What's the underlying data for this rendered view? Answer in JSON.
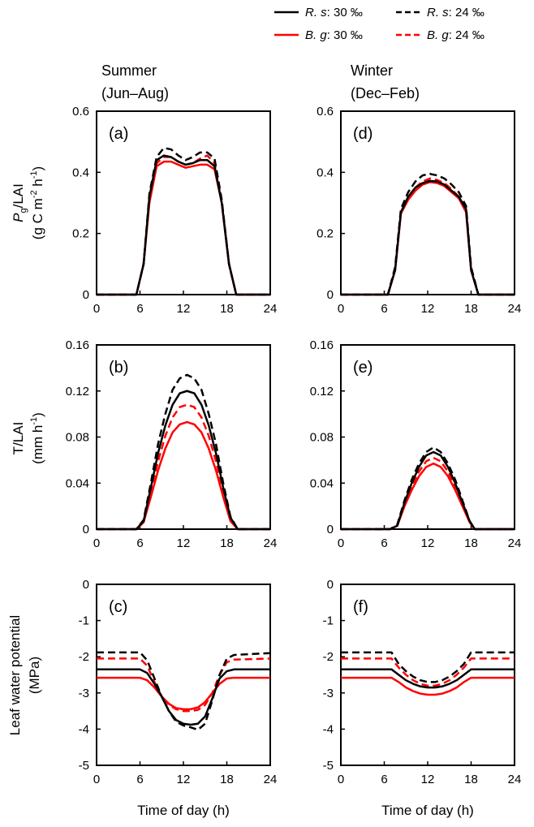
{
  "legend": [
    {
      "species": "R. s",
      "rest": ": 30 ‰",
      "color": "#000000",
      "dash": false
    },
    {
      "species": "R. s",
      "rest": ": 24 ‰",
      "color": "#000000",
      "dash": true
    },
    {
      "species": "B. g",
      "rest": ": 30 ‰",
      "color": "#ff0000",
      "dash": false
    },
    {
      "species": "B. g",
      "rest": ": 24 ‰",
      "color": "#ff0000",
      "dash": true
    }
  ],
  "columns": [
    {
      "title": "Summer",
      "subtitle": "(Jun–Aug)"
    },
    {
      "title": "Winter",
      "subtitle": "(Dec–Feb)"
    }
  ],
  "xlabel": "Time of day (h)",
  "ylabels": [
    {
      "p": "P",
      "sub": "g",
      "main": "/LAI",
      "u1": "(g C m",
      "s1": "-2",
      "u2": " h",
      "s2": "-1",
      "u3": ")"
    },
    {
      "main": "T/LAI",
      "u1": "(mm h",
      "s1": "-1",
      "u3": ")"
    },
    {
      "main": "Leaf water potential",
      "u1": "(MPa)"
    }
  ],
  "chart_data": [
    {
      "type": "line",
      "panel": "(a)",
      "ylim": [
        0,
        0.6
      ],
      "yticks": [
        "0",
        "0.2",
        "0.4",
        "0.6"
      ],
      "xlim": [
        0,
        24
      ],
      "xticks": [
        "0",
        "6",
        "12",
        "18",
        "24"
      ],
      "x": [
        0,
        5.5,
        6.5,
        7.3,
        8.3,
        9.3,
        10.3,
        11.3,
        12.3,
        13.3,
        14.3,
        15.3,
        16.3,
        17.3,
        18.3,
        19.3,
        24
      ],
      "series": [
        {
          "name": "R. s: 30 ‰",
          "values": [
            0,
            0,
            0.1,
            0.32,
            0.44,
            0.455,
            0.45,
            0.435,
            0.425,
            0.43,
            0.44,
            0.44,
            0.42,
            0.3,
            0.1,
            0,
            0
          ]
        },
        {
          "name": "R. s: 24 ‰",
          "values": [
            0,
            0,
            0.1,
            0.33,
            0.45,
            0.48,
            0.475,
            0.455,
            0.44,
            0.45,
            0.465,
            0.465,
            0.445,
            0.31,
            0.1,
            0,
            0
          ]
        },
        {
          "name": "B. g: 30 ‰",
          "values": [
            0,
            0,
            0.1,
            0.3,
            0.42,
            0.435,
            0.435,
            0.425,
            0.415,
            0.42,
            0.425,
            0.425,
            0.41,
            0.3,
            0.1,
            0,
            0
          ]
        },
        {
          "name": "B. g: 24 ‰",
          "values": [
            0,
            0,
            0.1,
            0.31,
            0.43,
            0.45,
            0.45,
            0.435,
            0.425,
            0.43,
            0.445,
            0.455,
            0.43,
            0.3,
            0.1,
            0,
            0
          ]
        }
      ]
    },
    {
      "type": "line",
      "panel": "(b)",
      "ylim": [
        0,
        0.16
      ],
      "yticks": [
        "0",
        "0.04",
        "0.08",
        "0.12",
        "0.16"
      ],
      "xlim": [
        0,
        24
      ],
      "xticks": [
        "0",
        "6",
        "12",
        "18",
        "24"
      ],
      "x": [
        0,
        5.5,
        6.5,
        7.5,
        8.5,
        9.5,
        10.5,
        11.5,
        12.5,
        13.5,
        14.5,
        15.5,
        16.5,
        17.5,
        18.5,
        19.5,
        24
      ],
      "series": [
        {
          "name": "R. s: 30 ‰",
          "values": [
            0,
            0,
            0.007,
            0.036,
            0.066,
            0.09,
            0.108,
            0.118,
            0.12,
            0.118,
            0.108,
            0.09,
            0.066,
            0.036,
            0.01,
            0,
            0
          ]
        },
        {
          "name": "R. s: 24 ‰",
          "values": [
            0,
            0,
            0.008,
            0.04,
            0.074,
            0.1,
            0.121,
            0.131,
            0.134,
            0.131,
            0.121,
            0.1,
            0.074,
            0.04,
            0.011,
            0,
            0
          ]
        },
        {
          "name": "B. g: 30 ‰",
          "values": [
            0,
            0,
            0.006,
            0.028,
            0.051,
            0.07,
            0.084,
            0.091,
            0.093,
            0.091,
            0.084,
            0.07,
            0.051,
            0.028,
            0.007,
            0,
            0
          ]
        },
        {
          "name": "B. g: 24 ‰",
          "values": [
            0,
            0,
            0.006,
            0.032,
            0.059,
            0.081,
            0.097,
            0.106,
            0.108,
            0.106,
            0.097,
            0.081,
            0.059,
            0.032,
            0.009,
            0,
            0
          ]
        }
      ]
    },
    {
      "type": "line",
      "panel": "(c)",
      "ylim": [
        -5,
        0
      ],
      "yticks": [
        "-5",
        "-4",
        "-3",
        "-2",
        "-1",
        "0"
      ],
      "xlim": [
        0,
        24
      ],
      "xticks": [
        "0",
        "6",
        "12",
        "18",
        "24"
      ],
      "x": [
        0,
        6,
        7,
        8,
        9,
        10,
        11,
        12,
        13,
        14,
        15,
        16,
        17,
        18,
        19,
        24
      ],
      "series": [
        {
          "name": "R. s: 30 ‰",
          "values": [
            -2.35,
            -2.35,
            -2.45,
            -2.75,
            -3.1,
            -3.5,
            -3.75,
            -3.85,
            -3.88,
            -3.85,
            -3.65,
            -3.15,
            -2.6,
            -2.4,
            -2.35,
            -2.35
          ]
        },
        {
          "name": "R. s: 24 ‰",
          "values": [
            -1.88,
            -1.88,
            -2.1,
            -2.6,
            -3.1,
            -3.5,
            -3.8,
            -3.9,
            -3.95,
            -4.02,
            -3.85,
            -3.2,
            -2.5,
            -2.05,
            -1.95,
            -1.9
          ]
        },
        {
          "name": "B. g: 30 ‰",
          "values": [
            -2.58,
            -2.58,
            -2.65,
            -2.85,
            -3.1,
            -3.3,
            -3.42,
            -3.45,
            -3.45,
            -3.4,
            -3.25,
            -3.0,
            -2.75,
            -2.6,
            -2.58,
            -2.58
          ]
        },
        {
          "name": "B. g: 24 ‰",
          "values": [
            -2.05,
            -2.05,
            -2.25,
            -2.7,
            -3.1,
            -3.33,
            -3.45,
            -3.5,
            -3.5,
            -3.47,
            -3.33,
            -3.0,
            -2.5,
            -2.15,
            -2.08,
            -2.05
          ]
        }
      ]
    },
    {
      "type": "line",
      "panel": "(d)",
      "ylim": [
        0,
        0.6
      ],
      "yticks": [
        "0",
        "0.2",
        "0.4",
        "0.6"
      ],
      "xlim": [
        0,
        24
      ],
      "xticks": [
        "0",
        "6",
        "12",
        "18",
        "24"
      ],
      "x": [
        0,
        6.5,
        7.5,
        8.3,
        9.3,
        10.3,
        11.3,
        12.3,
        13.3,
        14.3,
        15.3,
        16.3,
        17.3,
        18,
        19,
        24
      ],
      "series": [
        {
          "name": "R. s: 30 ‰",
          "values": [
            0,
            0,
            0.08,
            0.27,
            0.32,
            0.35,
            0.365,
            0.372,
            0.37,
            0.36,
            0.34,
            0.32,
            0.28,
            0.08,
            0,
            0
          ]
        },
        {
          "name": "R. s: 24 ‰",
          "values": [
            0,
            0,
            0.09,
            0.28,
            0.335,
            0.37,
            0.39,
            0.395,
            0.39,
            0.38,
            0.36,
            0.335,
            0.29,
            0.09,
            0,
            0
          ]
        },
        {
          "name": "B. g: 30 ‰",
          "values": [
            0,
            0,
            0.08,
            0.265,
            0.31,
            0.34,
            0.36,
            0.368,
            0.365,
            0.355,
            0.335,
            0.315,
            0.27,
            0.08,
            0,
            0
          ]
        },
        {
          "name": "B. g: 24 ‰",
          "values": [
            0,
            0,
            0.08,
            0.27,
            0.315,
            0.35,
            0.37,
            0.38,
            0.375,
            0.365,
            0.345,
            0.32,
            0.28,
            0.08,
            0,
            0
          ]
        }
      ]
    },
    {
      "type": "line",
      "panel": "(e)",
      "ylim": [
        0,
        0.16
      ],
      "yticks": [
        "0",
        "0.04",
        "0.08",
        "0.12",
        "0.16"
      ],
      "xlim": [
        0,
        24
      ],
      "xticks": [
        "0",
        "6",
        "12",
        "18",
        "24"
      ],
      "x": [
        0,
        6.8,
        7.8,
        8.8,
        9.8,
        10.8,
        11.8,
        12.8,
        13.8,
        14.8,
        15.8,
        16.8,
        17.8,
        18.5,
        24
      ],
      "series": [
        {
          "name": "R. s: 30 ‰",
          "values": [
            0,
            0,
            0.003,
            0.023,
            0.04,
            0.054,
            0.064,
            0.067,
            0.064,
            0.054,
            0.04,
            0.023,
            0.007,
            0,
            0
          ]
        },
        {
          "name": "R. s: 24 ‰",
          "values": [
            0,
            0,
            0.004,
            0.025,
            0.043,
            0.057,
            0.067,
            0.071,
            0.067,
            0.057,
            0.043,
            0.025,
            0.007,
            0,
            0
          ]
        },
        {
          "name": "B. g: 30 ‰",
          "values": [
            0,
            0,
            0.003,
            0.02,
            0.034,
            0.046,
            0.054,
            0.057,
            0.054,
            0.046,
            0.034,
            0.02,
            0.006,
            0,
            0
          ]
        },
        {
          "name": "B. g: 24 ‰",
          "values": [
            0,
            0,
            0.003,
            0.022,
            0.037,
            0.05,
            0.059,
            0.062,
            0.059,
            0.05,
            0.037,
            0.022,
            0.006,
            0,
            0
          ]
        }
      ]
    },
    {
      "type": "line",
      "panel": "(f)",
      "ylim": [
        -5,
        0
      ],
      "yticks": [
        "-5",
        "-4",
        "-3",
        "-2",
        "-1",
        "0"
      ],
      "xlim": [
        0,
        24
      ],
      "xticks": [
        "0",
        "6",
        "12",
        "18",
        "24"
      ],
      "x": [
        0,
        7,
        8,
        9,
        10,
        11,
        12,
        13,
        14,
        15,
        16,
        17,
        18,
        24
      ],
      "series": [
        {
          "name": "R. s: 30 ‰",
          "values": [
            -2.35,
            -2.35,
            -2.5,
            -2.65,
            -2.75,
            -2.82,
            -2.85,
            -2.85,
            -2.82,
            -2.75,
            -2.65,
            -2.5,
            -2.35,
            -2.35
          ]
        },
        {
          "name": "R. s: 24 ‰",
          "values": [
            -1.88,
            -1.88,
            -2.2,
            -2.4,
            -2.55,
            -2.65,
            -2.7,
            -2.7,
            -2.65,
            -2.55,
            -2.4,
            -2.2,
            -1.88,
            -1.88
          ]
        },
        {
          "name": "B. g: 30 ‰",
          "values": [
            -2.58,
            -2.58,
            -2.7,
            -2.85,
            -2.95,
            -3.02,
            -3.05,
            -3.05,
            -3.02,
            -2.95,
            -2.85,
            -2.7,
            -2.58,
            -2.58
          ]
        },
        {
          "name": "B. g: 24 ‰",
          "values": [
            -2.05,
            -2.05,
            -2.3,
            -2.5,
            -2.65,
            -2.75,
            -2.8,
            -2.8,
            -2.75,
            -2.65,
            -2.5,
            -2.3,
            -2.05,
            -2.05
          ]
        }
      ]
    }
  ]
}
